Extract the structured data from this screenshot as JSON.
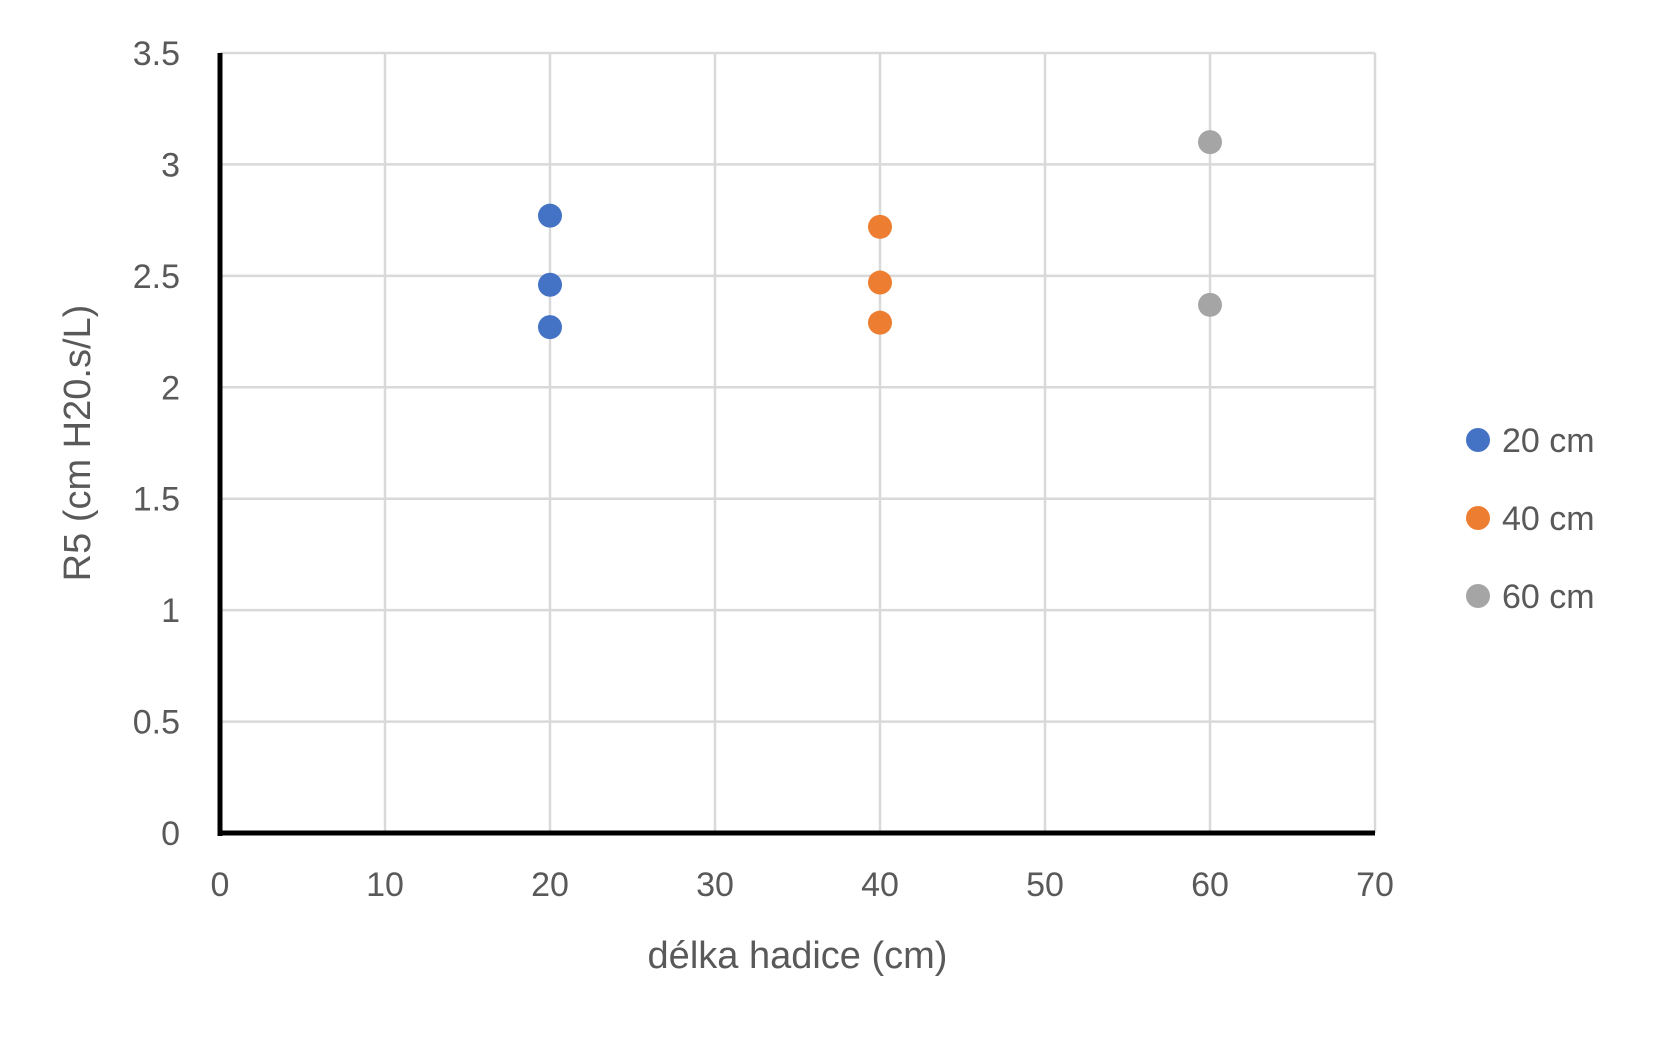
{
  "chart_data": {
    "type": "scatter",
    "title": "",
    "xlabel": "délka hadice (cm)",
    "ylabel": "R5 (cm H20.s/L)",
    "xlim": [
      0,
      70
    ],
    "ylim": [
      0,
      3.5
    ],
    "x_ticks": [
      0,
      10,
      20,
      30,
      40,
      50,
      60,
      70
    ],
    "x_tick_labels": [
      "0",
      "10",
      "20",
      "30",
      "40",
      "50",
      "60",
      "70"
    ],
    "y_ticks": [
      0,
      0.5,
      1,
      1.5,
      2,
      2.5,
      3,
      3.5
    ],
    "y_tick_labels": [
      "0",
      "0.5",
      "1",
      "1.5",
      "2",
      "2.5",
      "3",
      "3.5"
    ],
    "grid": true,
    "legend_position": "right",
    "series": [
      {
        "name": "20 cm",
        "color": "#4472C4",
        "points": [
          {
            "x": 20,
            "y": 2.77
          },
          {
            "x": 20,
            "y": 2.46
          },
          {
            "x": 20,
            "y": 2.27
          }
        ]
      },
      {
        "name": "40 cm",
        "color": "#ED7D31",
        "points": [
          {
            "x": 40,
            "y": 2.72
          },
          {
            "x": 40,
            "y": 2.47
          },
          {
            "x": 40,
            "y": 2.29
          }
        ]
      },
      {
        "name": "60 cm",
        "color": "#A5A5A5",
        "points": [
          {
            "x": 60,
            "y": 3.1
          },
          {
            "x": 60,
            "y": 2.37
          }
        ]
      }
    ]
  }
}
